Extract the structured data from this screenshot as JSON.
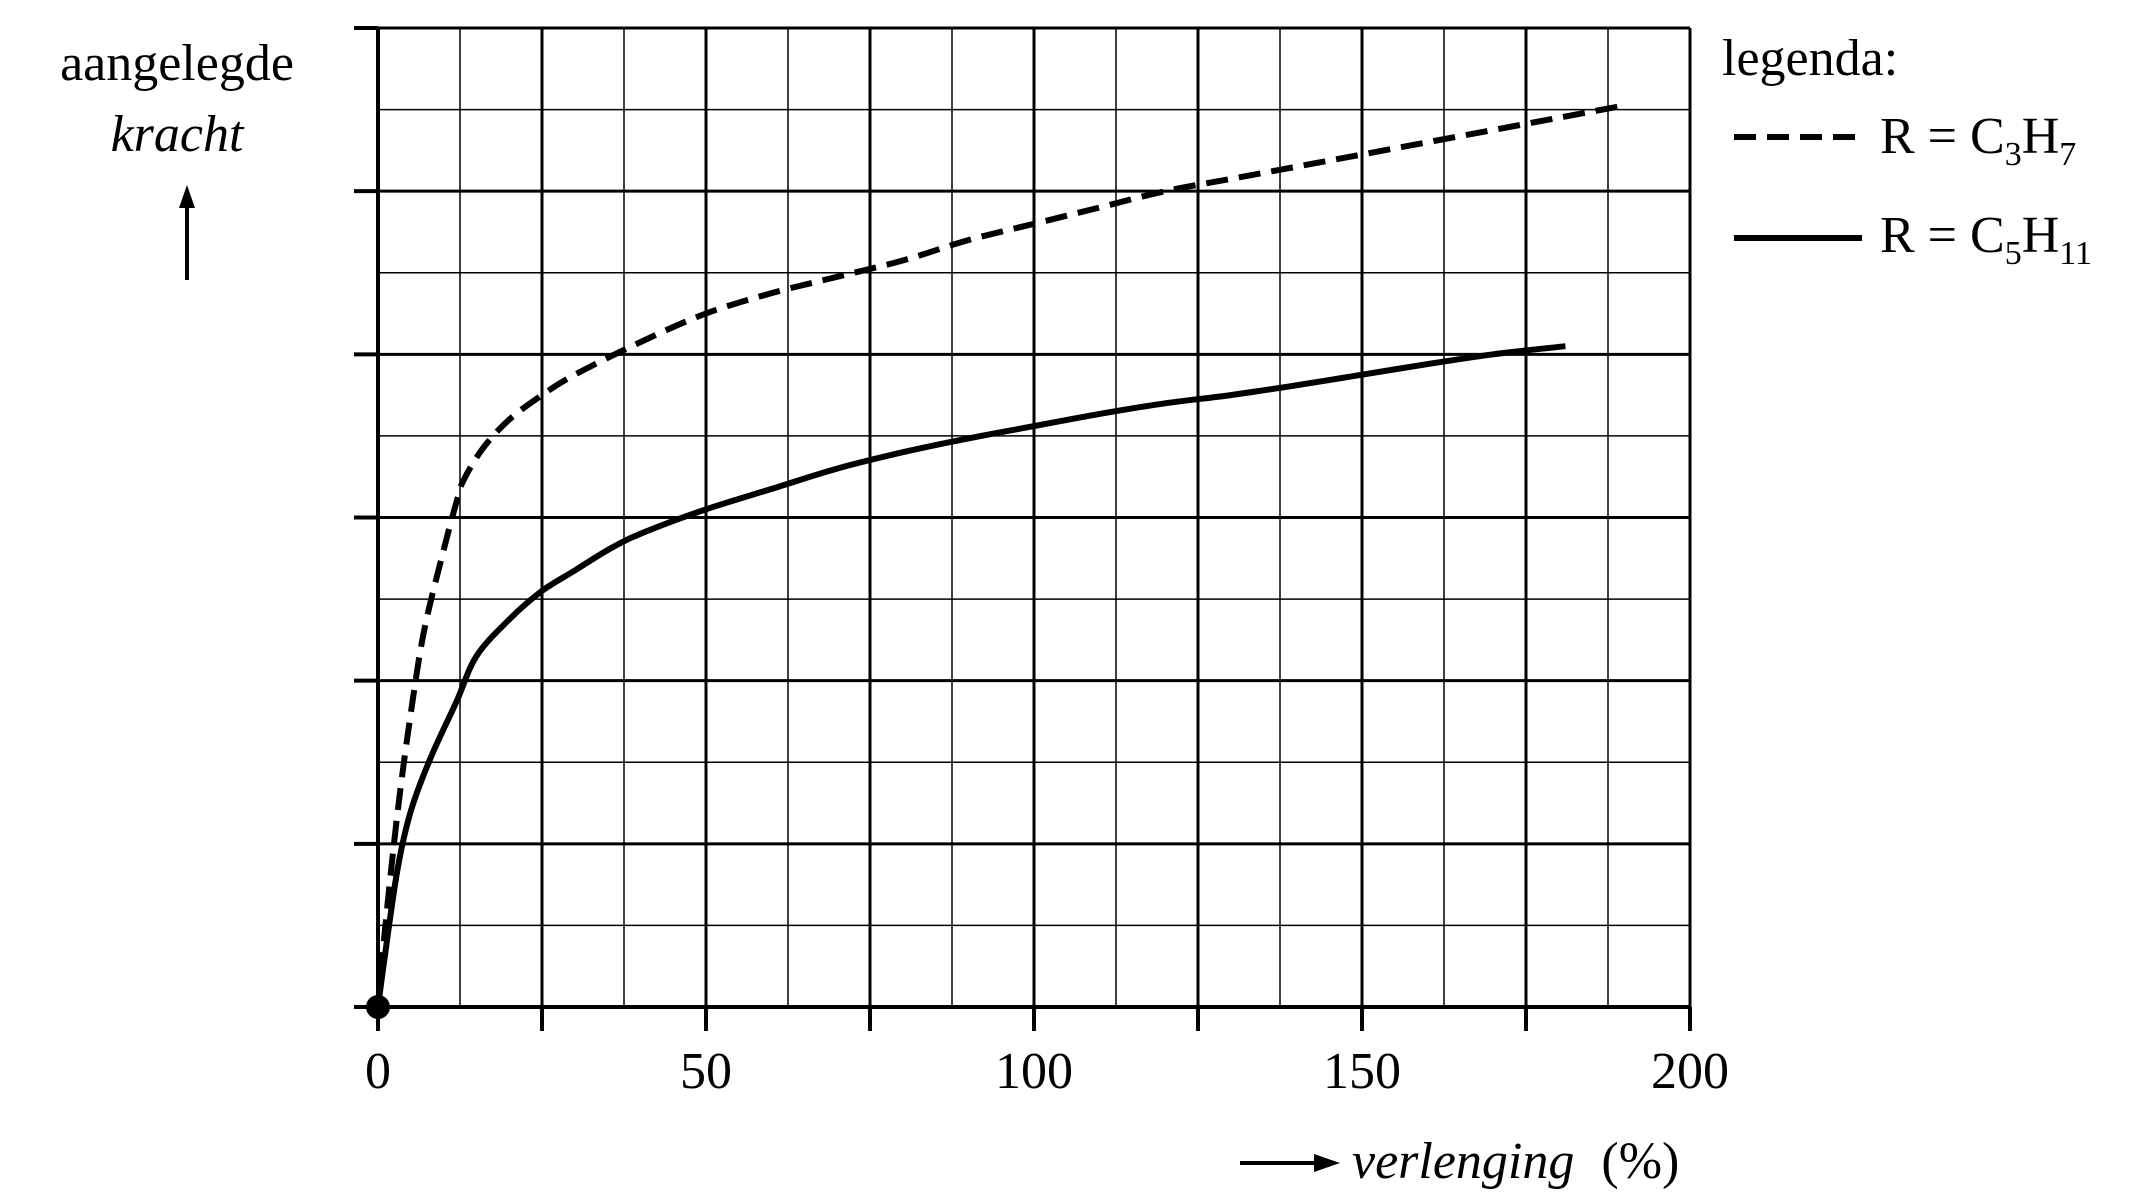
{
  "chart_data": {
    "type": "line",
    "title": "",
    "ylabel": {
      "line1": "aangelegde",
      "line2": "kracht"
    },
    "xlabel": {
      "name": "verlenging",
      "unit": "(%)"
    },
    "xlim": [
      0,
      200
    ],
    "ylim": [
      0,
      12
    ],
    "grid": true,
    "x_ticks": [
      "0",
      "50",
      "100",
      "150",
      "200"
    ],
    "legend": {
      "title": "legenda:",
      "position": "top-right"
    },
    "series": [
      {
        "name": "R = C3H7",
        "label_parts": {
          "prefix": "R = C",
          "sub1": "3",
          "mid": "H",
          "sub2": "7"
        },
        "style": "dashed",
        "x": [
          0,
          1,
          3,
          5,
          7,
          10,
          12,
          13,
          16,
          20,
          25,
          30,
          40,
          50,
          60,
          70,
          80,
          90,
          100,
          110,
          120,
          130,
          140,
          150,
          160,
          170,
          180,
          190
        ],
        "y": [
          0,
          0.9,
          2.4,
          3.6,
          4.6,
          5.6,
          6.2,
          6.45,
          6.85,
          7.2,
          7.5,
          7.75,
          8.15,
          8.5,
          8.75,
          8.95,
          9.15,
          9.4,
          9.6,
          9.8,
          10.0,
          10.15,
          10.3,
          10.45,
          10.6,
          10.75,
          10.9,
          11.05
        ]
      },
      {
        "name": "R = C5H11",
        "label_parts": {
          "prefix": "R = C",
          "sub1": "5",
          "mid": "H",
          "sub2": "11"
        },
        "style": "solid",
        "x": [
          0,
          1,
          3,
          5,
          8,
          12,
          15,
          20,
          25,
          30,
          35,
          40,
          50,
          60,
          70,
          80,
          90,
          100,
          110,
          120,
          130,
          140,
          150,
          160,
          170,
          181
        ],
        "y": [
          0,
          0.6,
          1.7,
          2.4,
          3.05,
          3.75,
          4.3,
          4.75,
          5.1,
          5.35,
          5.6,
          5.8,
          6.1,
          6.35,
          6.6,
          6.8,
          6.97,
          7.12,
          7.27,
          7.4,
          7.5,
          7.62,
          7.75,
          7.88,
          8.0,
          8.1
        ]
      }
    ]
  }
}
